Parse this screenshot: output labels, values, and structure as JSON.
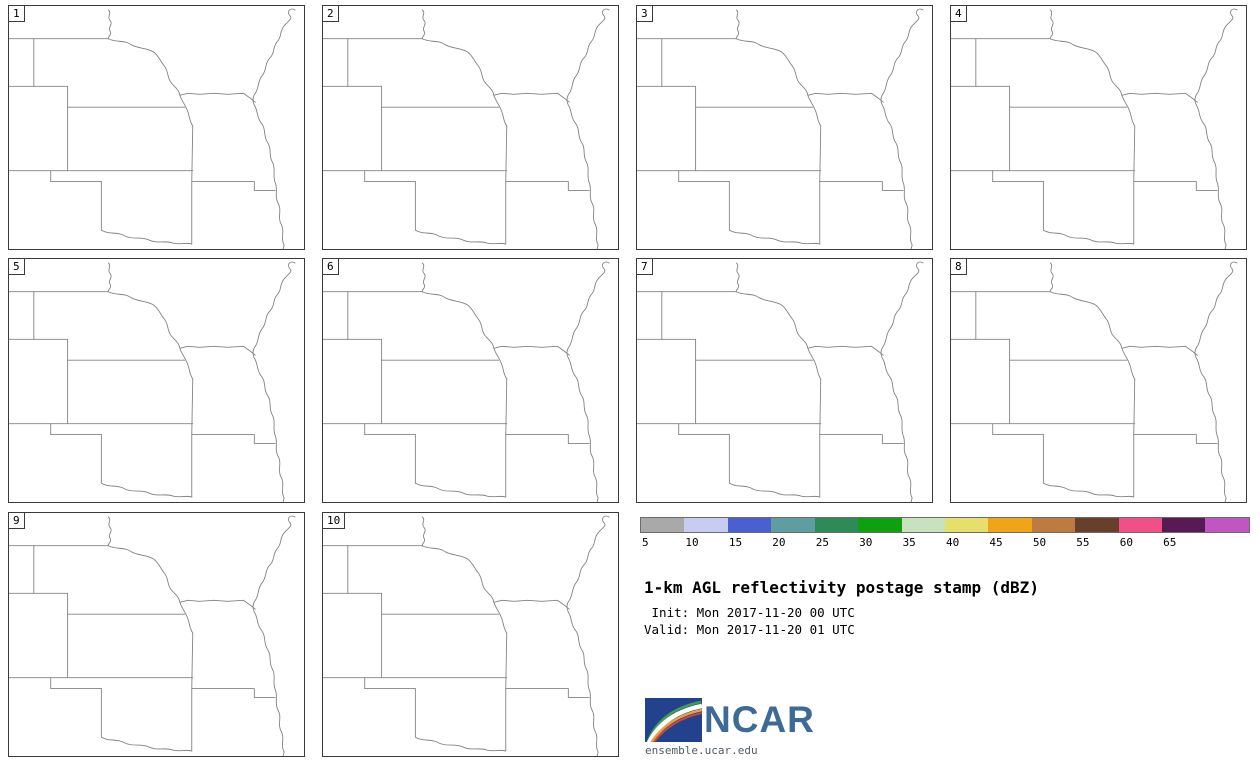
{
  "figure": {
    "title": "1-km AGL reflectivity postage stamp (dBZ)",
    "init_label": " Init: Mon 2017-11-20 00 UTC",
    "valid_label": "Valid: Mon 2017-11-20 01 UTC"
  },
  "panels": [
    {
      "label": "1"
    },
    {
      "label": "2"
    },
    {
      "label": "3"
    },
    {
      "label": "4"
    },
    {
      "label": "5"
    },
    {
      "label": "6"
    },
    {
      "label": "7"
    },
    {
      "label": "8"
    },
    {
      "label": "9"
    },
    {
      "label": "10"
    }
  ],
  "colorbar": {
    "units": "dBZ",
    "tick_labels": [
      "5",
      "10",
      "15",
      "20",
      "25",
      "30",
      "35",
      "40",
      "45",
      "50",
      "55",
      "60",
      "65"
    ],
    "segment_colors": [
      "#a9a9a9",
      "#c8ccf0",
      "#4a5fd0",
      "#5f9ea0",
      "#2e8b57",
      "#0fa00f",
      "#c8e2c0",
      "#e7df6c",
      "#f0a418",
      "#bd7b41",
      "#67402c",
      "#f14f87",
      "#571a54",
      "#c155c1"
    ]
  },
  "logo": {
    "wordmark": "NCAR",
    "caption": "ensemble.ucar.edu"
  },
  "chart_data": {
    "type": "heatmap",
    "title": "1-km AGL reflectivity postage stamp (dBZ)",
    "variable": "1-km AGL reflectivity",
    "units": "dBZ",
    "init_time": "Mon 2017-11-20 00 UTC",
    "valid_time": "Mon 2017-11-20 01 UTC",
    "ensemble_members": [
      "1",
      "2",
      "3",
      "4",
      "5",
      "6",
      "7",
      "8",
      "9",
      "10"
    ],
    "panel_grid": {
      "rows": 3,
      "cols": 4,
      "panels_in_last_row": 2
    },
    "map_region": "Central US state outlines (Nebraska, Iowa, Kansas, Missouri, Oklahoma and neighbors)",
    "colorbar_tick_values": [
      5,
      10,
      15,
      20,
      25,
      30,
      35,
      40,
      45,
      50,
      55,
      60,
      65
    ],
    "colorbar_colors": [
      "#a9a9a9",
      "#c8ccf0",
      "#4a5fd0",
      "#5f9ea0",
      "#2e8b57",
      "#0fa00f",
      "#c8e2c0",
      "#e7df6c",
      "#f0a418",
      "#bd7b41",
      "#67402c",
      "#f14f87",
      "#571a54",
      "#c155c1"
    ],
    "values_note": "All ten member panels are blank: no reflectivity at or above 5 dBZ is depicted, only state border outlines"
  }
}
